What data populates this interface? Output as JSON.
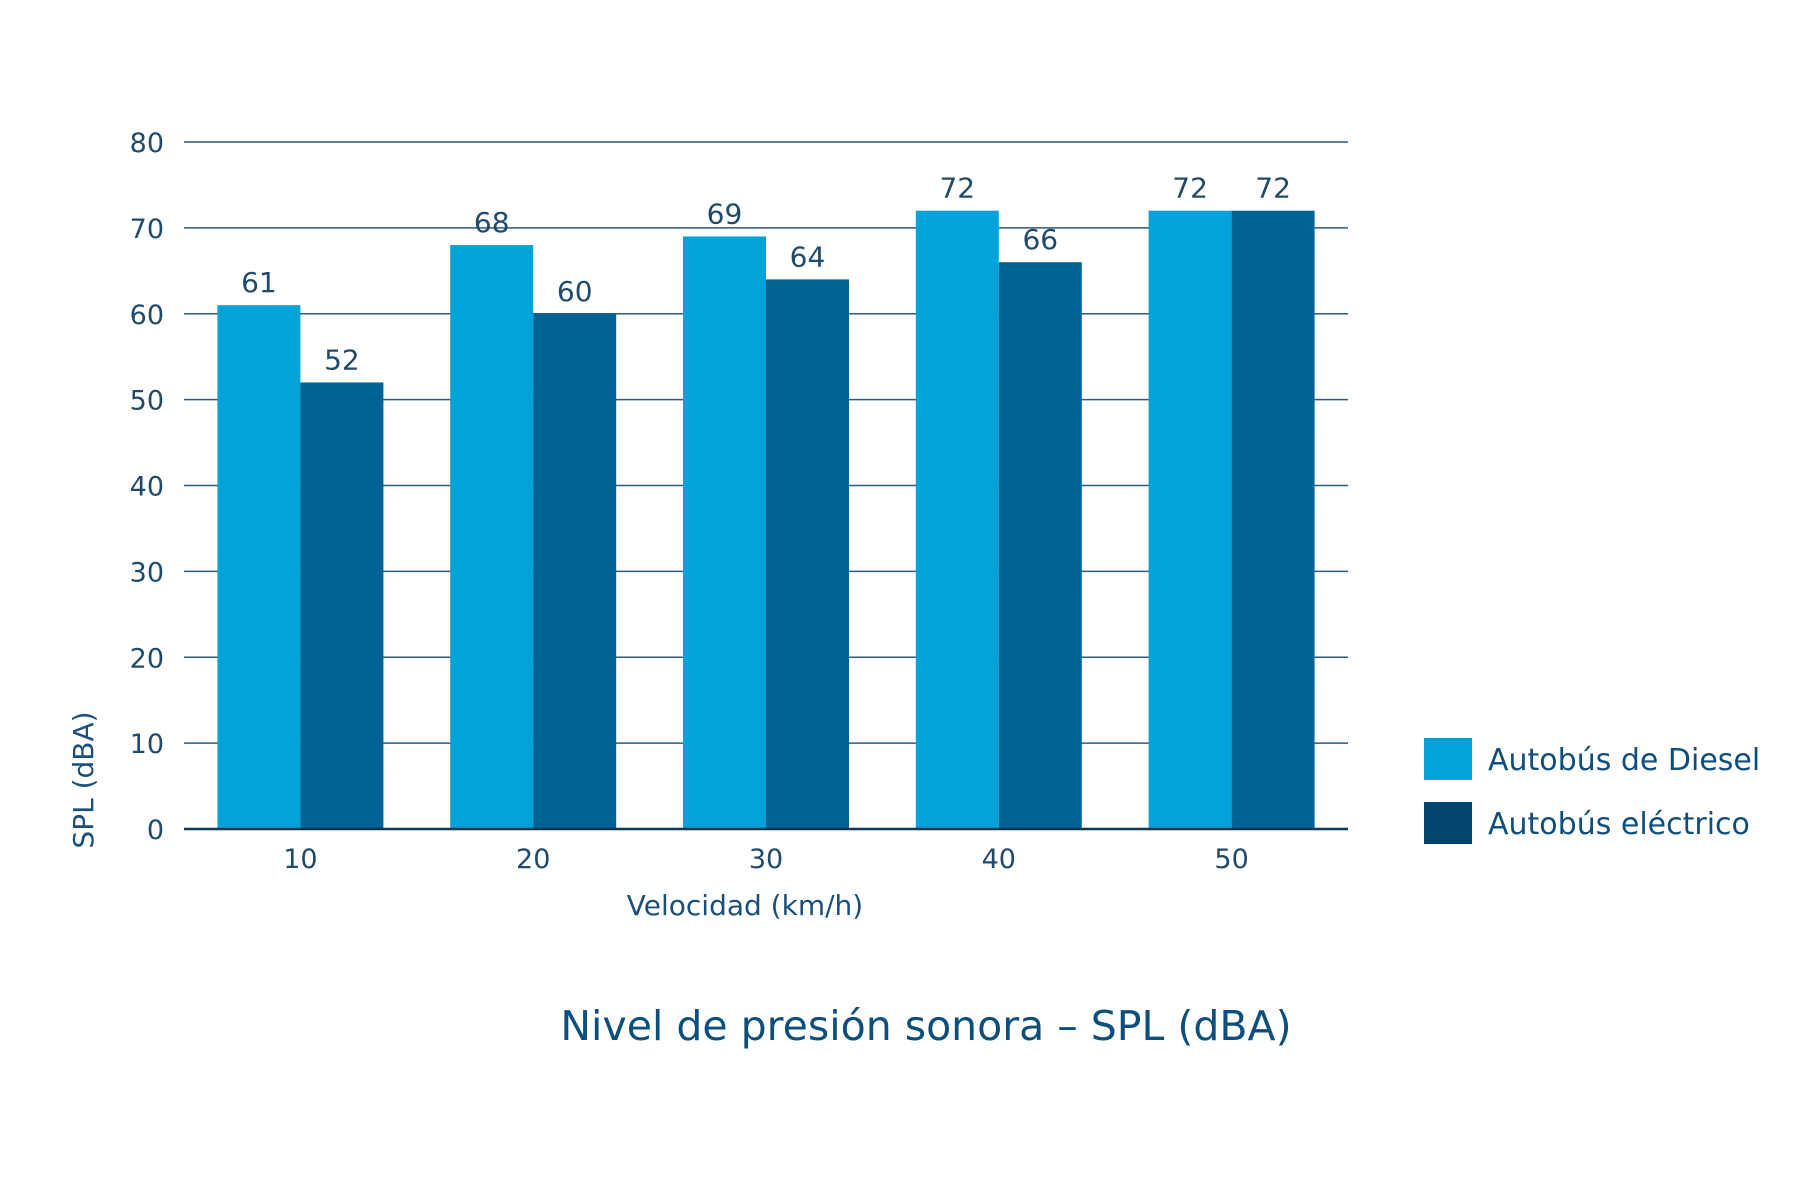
{
  "chart_data": {
    "type": "bar",
    "title": "Nivel de presión sonora – SPL (dBA)",
    "xlabel": "Velocidad (km/h)",
    "ylabel": "SPL (dBA)",
    "categories": [
      "10",
      "20",
      "30",
      "40",
      "50"
    ],
    "series": [
      {
        "name": "Autobús de Diesel",
        "values": [
          61,
          68,
          69,
          72,
          72
        ],
        "color": "#02a3d8"
      },
      {
        "name": "Autobús eléctrico",
        "values": [
          52,
          60,
          64,
          66,
          72
        ],
        "color": "#006394"
      }
    ],
    "legend_swatch_colors": [
      "#02a3d8",
      "#02466f"
    ],
    "ylim": [
      0,
      80
    ],
    "yticks": [
      "0",
      "10",
      "20",
      "30",
      "40",
      "50",
      "60",
      "70",
      "80"
    ],
    "grid": true,
    "legend": "right-bottom"
  }
}
